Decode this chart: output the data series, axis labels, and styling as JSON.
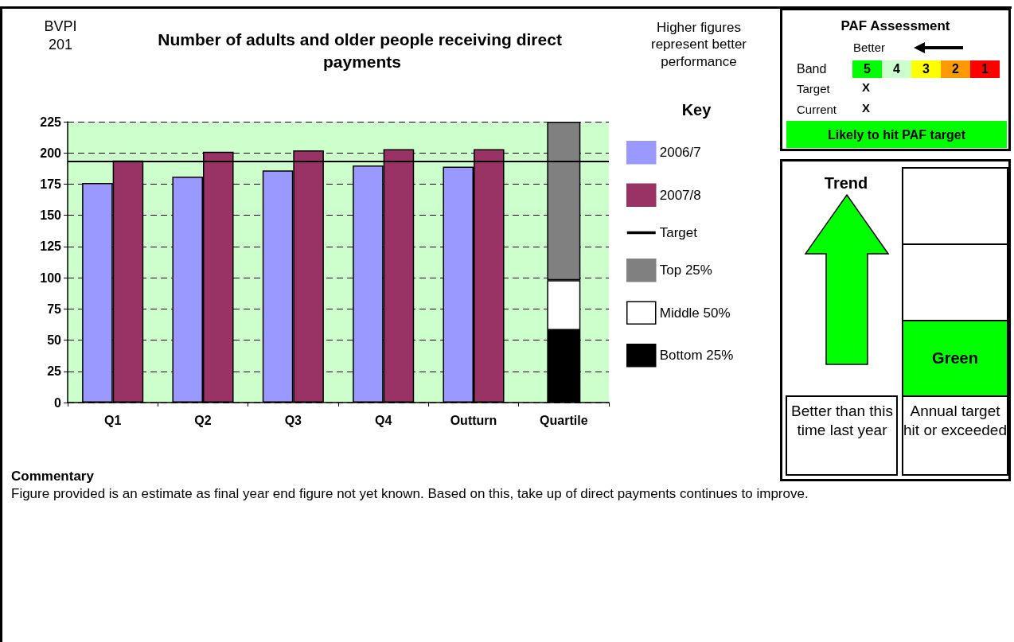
{
  "chart_data": {
    "type": "bar",
    "title": "Number of adults and older people receiving direct payments",
    "categories": [
      "Q1",
      "Q2",
      "Q3",
      "Q4",
      "Outturn",
      "Quartile"
    ],
    "series": [
      {
        "name": "2006/7",
        "color": "#9999ff",
        "values": [
          176,
          181,
          186,
          190,
          189,
          null
        ]
      },
      {
        "name": "2007/8",
        "color": "#993366",
        "values": [
          194,
          201,
          202,
          203,
          203,
          null
        ]
      },
      {
        "name": "Bottom 25%",
        "color": "#000000",
        "base": [
          null,
          null,
          null,
          null,
          null,
          0
        ],
        "values": [
          null,
          null,
          null,
          null,
          null,
          58
        ]
      },
      {
        "name": "Middle 50%",
        "color": "#ffffff",
        "base": [
          null,
          null,
          null,
          null,
          null,
          58
        ],
        "values": [
          null,
          null,
          null,
          null,
          null,
          40
        ]
      },
      {
        "name": "Top 25%",
        "color": "#808080",
        "base": [
          null,
          null,
          null,
          null,
          null,
          98
        ],
        "values": [
          null,
          null,
          null,
          null,
          null,
          127
        ]
      }
    ],
    "ref_lines": [
      {
        "axis": "y",
        "value": 193,
        "label": "Target",
        "color": "#000000"
      }
    ],
    "legend_title": "Key",
    "legend": "right",
    "grid": "y",
    "ylim": [
      0,
      225
    ],
    "yticks": [
      0,
      25,
      50,
      75,
      100,
      125,
      150,
      175,
      200,
      225
    ],
    "annotations": [
      "BVPI 201",
      "Higher figures represent better performance",
      "PAF Assessment",
      "Better",
      "Band",
      "5",
      "4",
      "3",
      "2",
      "1",
      "Target",
      "X",
      "Current",
      "X",
      "Likely to hit PAF target",
      "Trend",
      "Green",
      "Better than this time last year",
      "Annual target hit or exceeded",
      "Commentary",
      "Figure provided is an estimate as final year end figure not yet known. Based on this, take up of direct payments continues to improve."
    ]
  }
}
